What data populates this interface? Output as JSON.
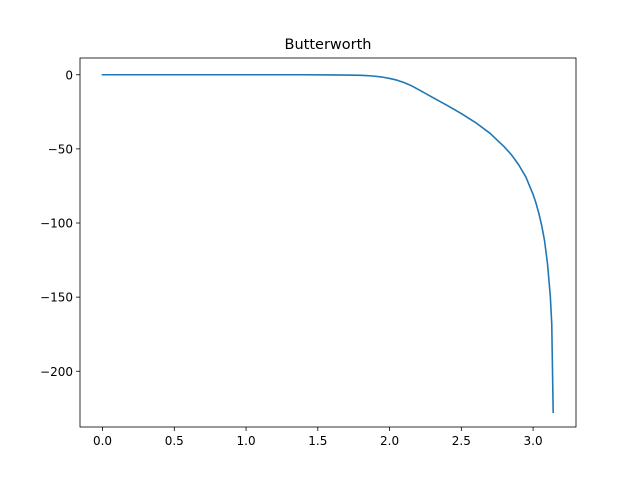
{
  "chart_data": {
    "type": "line",
    "title": "Butterworth",
    "xlabel": "",
    "ylabel": "",
    "xlim": [
      -0.157,
      3.299
    ],
    "ylim": [
      -237.6,
      11.3
    ],
    "x_ticks": [
      0.0,
      0.5,
      1.0,
      1.5,
      2.0,
      2.5,
      3.0
    ],
    "x_tick_labels": [
      "0.0",
      "0.5",
      "1.0",
      "1.5",
      "2.0",
      "2.5",
      "3.0"
    ],
    "y_ticks": [
      0,
      -50,
      -100,
      -150,
      -200
    ],
    "y_tick_labels": [
      "0",
      "−50",
      "−100",
      "−150",
      "−200"
    ],
    "grid": false,
    "legend": "none",
    "series": [
      {
        "color": "#1f77b4",
        "x": [
          0.0,
          0.2,
          0.4,
          0.6,
          0.8,
          1.0,
          1.2,
          1.4,
          1.6,
          1.7,
          1.8,
          1.85,
          1.9,
          1.95,
          2.0,
          2.05,
          2.1,
          2.15,
          2.2,
          2.3,
          2.4,
          2.5,
          2.6,
          2.7,
          2.8,
          2.85,
          2.9,
          2.95,
          3.0,
          3.02,
          3.04,
          3.06,
          3.08,
          3.1,
          3.12,
          3.13,
          3.14
        ],
        "y": [
          0,
          0,
          0,
          0,
          0,
          0,
          0,
          0,
          -0.1,
          -0.2,
          -0.4,
          -0.6,
          -1.0,
          -1.6,
          -2.5,
          -3.6,
          -5.2,
          -7.3,
          -9.9,
          -15.3,
          -20.6,
          -26.2,
          -32.3,
          -39.5,
          -48.7,
          -54.1,
          -60.8,
          -69.0,
          -80.7,
          -86.5,
          -93.5,
          -101.7,
          -112.0,
          -127.1,
          -149.3,
          -168.0,
          -227.6
        ]
      }
    ]
  }
}
